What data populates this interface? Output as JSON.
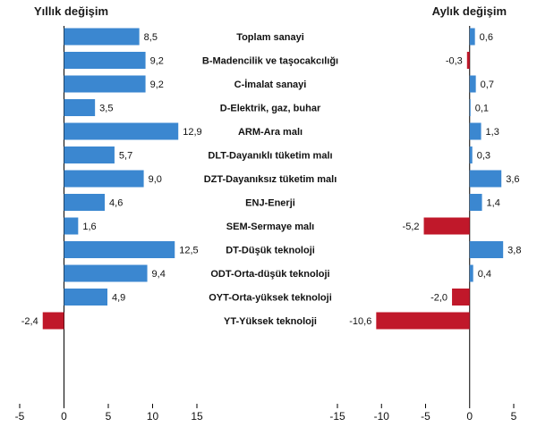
{
  "chart_data": {
    "type": "bar",
    "orientation": "horizontal",
    "colors": {
      "positive": "#3b87d0",
      "negative": "#c0182a",
      "axis": "#000000"
    },
    "categories": [
      "Toplam sanayi",
      "B-Madencilik ve taşocakcılığı",
      "C-İmalat sanayi",
      "D-Elektrik, gaz, buhar",
      "ARM-Ara malı",
      "DLT-Dayanıklı tüketim malı",
      "DZT-Dayanıksız tüketim malı",
      "ENJ-Enerji",
      "SEM-Sermaye malı",
      "DT-Düşük teknoloji",
      "ODT-Orta-düşük teknoloji",
      "OYT-Orta-yüksek teknoloji",
      "YT-Yüksek teknoloji"
    ],
    "groups": [
      [
        0
      ],
      [
        1,
        2,
        3
      ],
      [
        4,
        5,
        6,
        7,
        8
      ],
      [
        9,
        10,
        11,
        12
      ]
    ],
    "series": [
      {
        "name": "Yıllık değişim",
        "title": "Yıllık değişim",
        "values": [
          8.5,
          9.2,
          9.2,
          3.5,
          12.9,
          5.7,
          9.0,
          4.6,
          1.6,
          12.5,
          9.4,
          4.9,
          -2.4
        ],
        "labels": [
          "8,5",
          "9,2",
          "9,2",
          "3,5",
          "12,9",
          "5,7",
          "9,0",
          "4,6",
          "1,6",
          "12,5",
          "9,4",
          "4,9",
          "-2,4"
        ],
        "xlim": [
          -5,
          15
        ],
        "ticks": [
          -5,
          0,
          5,
          10,
          15
        ]
      },
      {
        "name": "Aylık değişim",
        "title": "Aylık değişim",
        "values": [
          0.6,
          -0.3,
          0.7,
          0.1,
          1.3,
          0.3,
          3.6,
          1.4,
          -5.2,
          3.8,
          0.4,
          -2.0,
          -10.6
        ],
        "labels": [
          "0,6",
          "-0,3",
          "0,7",
          "0,1",
          "1,3",
          "0,3",
          "3,6",
          "1,4",
          "-5,2",
          "3,8",
          "0,4",
          "-2,0",
          "-10,6"
        ],
        "xlim": [
          -15,
          5
        ],
        "ticks": [
          -15,
          -10,
          -5,
          0,
          5
        ]
      }
    ]
  }
}
